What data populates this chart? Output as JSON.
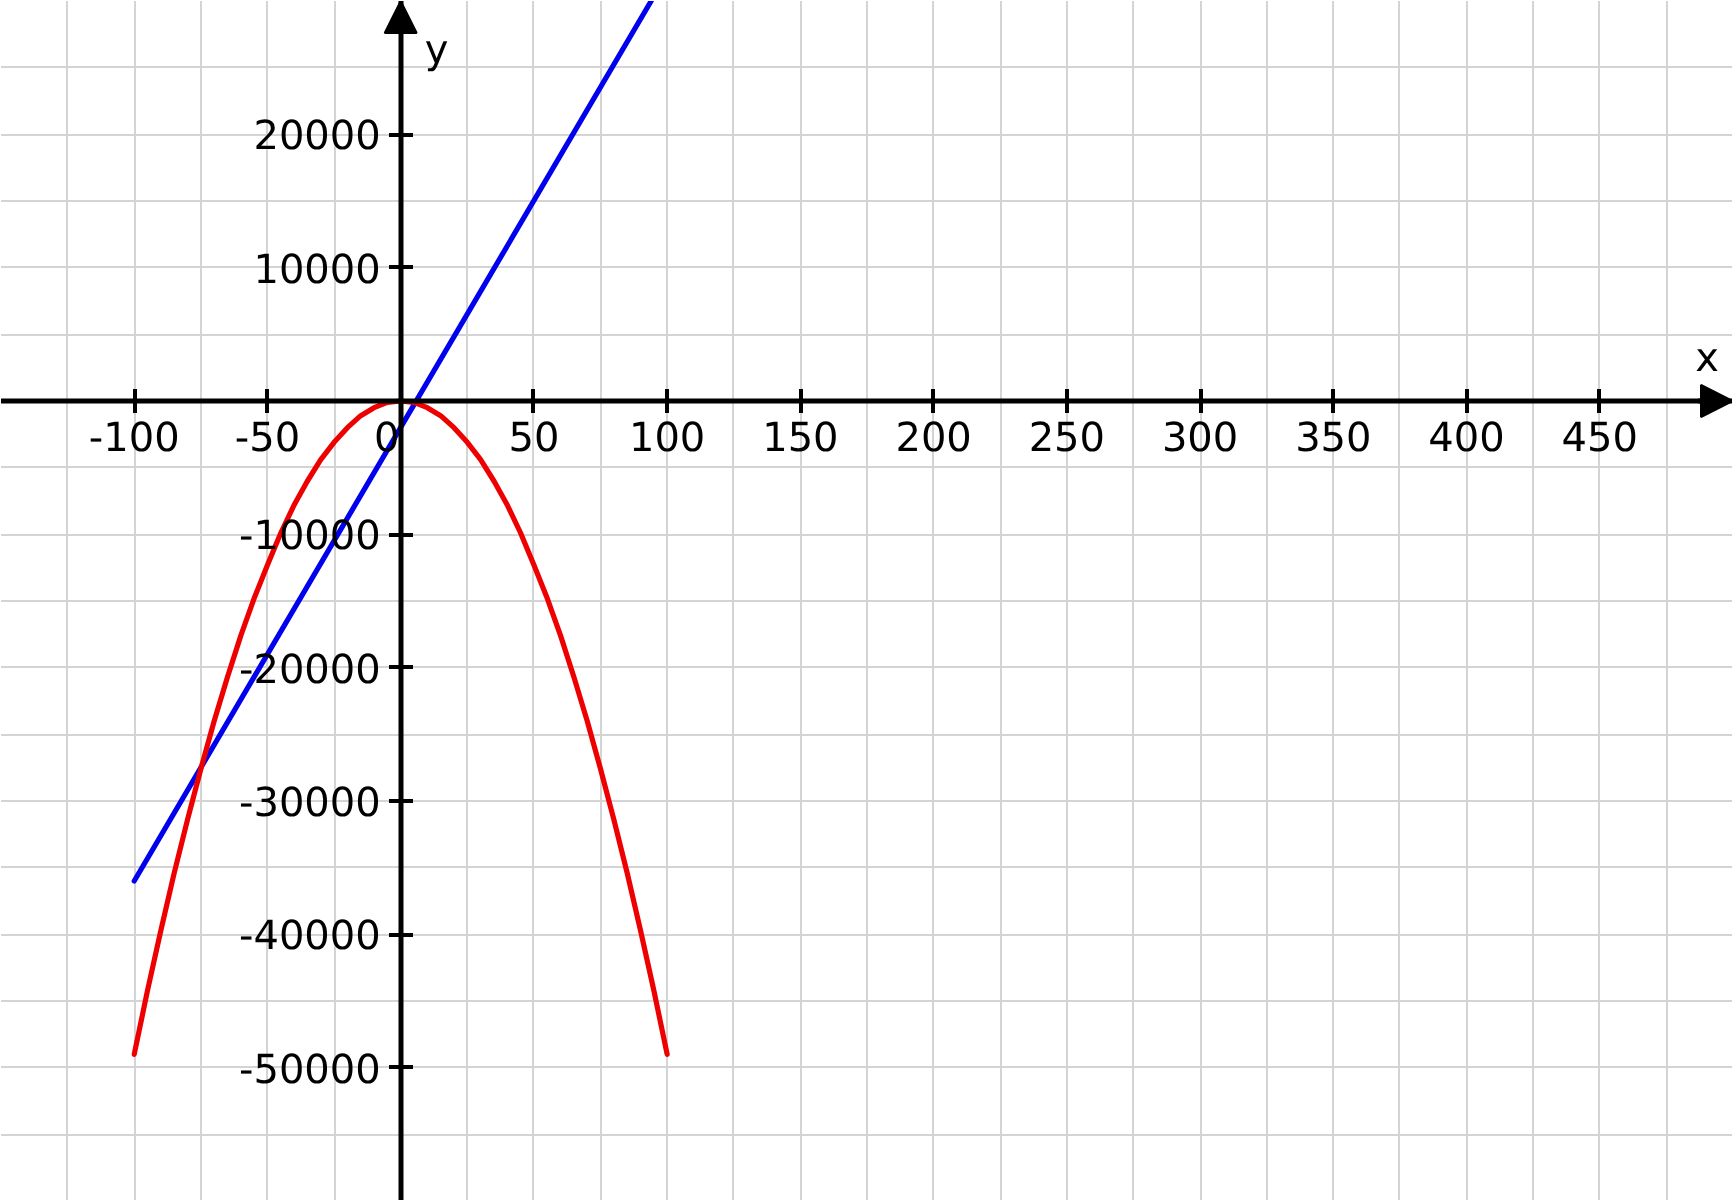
{
  "chart_data": {
    "type": "line",
    "xlabel": "x",
    "ylabel": "y",
    "xlim": [
      -150,
      500
    ],
    "ylim": [
      -60000,
      30000
    ],
    "xticks": [
      -100,
      -50,
      0,
      50,
      100,
      150,
      200,
      250,
      300,
      350,
      400,
      450
    ],
    "yticks": [
      -50000,
      -40000,
      -30000,
      -20000,
      -10000,
      10000,
      20000
    ],
    "grid": true,
    "series": [
      {
        "color": "#0000ee",
        "x": [
          -100,
          94
        ],
        "values": [
          -36000,
          30000
        ]
      },
      {
        "color": "#ee0000",
        "x": [
          -100,
          -95,
          -90,
          -85,
          -80,
          -75,
          -70,
          -65,
          -60,
          -55,
          -50,
          -45,
          -40,
          -35,
          -30,
          -25,
          -20,
          -15,
          -10,
          -5,
          0,
          5,
          10,
          15,
          20,
          25,
          30,
          35,
          40,
          45,
          50,
          55,
          60,
          65,
          70,
          75,
          80,
          85,
          90,
          95,
          100
        ],
        "values": [
          -49000,
          -44200,
          -39700,
          -35400,
          -31400,
          -27600,
          -24000,
          -20700,
          -17600,
          -14800,
          -12300,
          -9900,
          -7800,
          -6000,
          -4400,
          -3100,
          -2000,
          -1100,
          -500,
          -100,
          0,
          -100,
          -500,
          -1100,
          -2000,
          -3100,
          -4400,
          -6000,
          -7800,
          -9900,
          -12300,
          -14800,
          -17600,
          -20700,
          -24000,
          -27600,
          -31400,
          -35400,
          -39700,
          -44200,
          -49000
        ]
      }
    ]
  }
}
